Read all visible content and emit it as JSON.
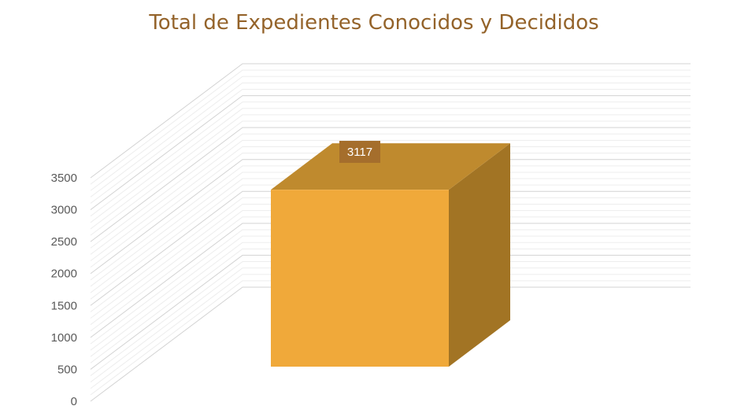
{
  "chart_data": {
    "type": "bar",
    "title": "Total de Expedientes Conocidos y Decididos",
    "categories": [
      ""
    ],
    "values": [
      3117
    ],
    "ylim": [
      0,
      3500
    ],
    "yticks": [
      0,
      500,
      1000,
      1500,
      2000,
      2500,
      3000,
      3500
    ],
    "yticklabels": [
      "0",
      "500",
      "1000",
      "1500",
      "2000",
      "2500",
      "3000",
      "3500"
    ],
    "data_labels": [
      "3117"
    ],
    "grid": true,
    "legend": "none",
    "three_d": true
  },
  "colors": {
    "title": "#94632A",
    "bar_front": "#F0A93A",
    "bar_top": "#BF8A2E",
    "bar_side": "#A27424",
    "label_box": "#A56E2C",
    "grid": "#D9D9D9",
    "axis_text": "#595959"
  }
}
